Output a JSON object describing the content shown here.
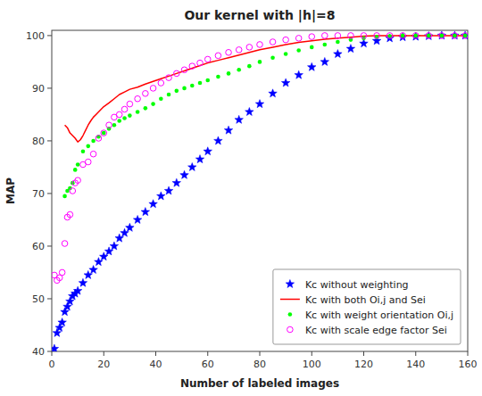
{
  "chart_data": {
    "type": "line",
    "title": "Our kernel with |h|=8",
    "xlabel": "Number of labeled images",
    "ylabel": "MAP",
    "xlim": [
      0,
      160
    ],
    "ylim": [
      40,
      101
    ],
    "xticks": [
      0,
      20,
      40,
      60,
      80,
      100,
      120,
      140,
      160
    ],
    "yticks": [
      40,
      50,
      60,
      70,
      80,
      90,
      100
    ],
    "grid": false,
    "legend": "lower right",
    "series": [
      {
        "name": "Kc without weighting",
        "type": "scatter",
        "color": "blue",
        "marker": "star",
        "line_style": "none",
        "x": [
          1,
          2,
          3,
          4,
          5,
          6,
          7,
          8,
          9,
          10,
          12,
          14,
          16,
          18,
          20,
          22,
          24,
          26,
          28,
          30,
          33,
          36,
          39,
          42,
          45,
          48,
          51,
          54,
          57,
          60,
          64,
          68,
          72,
          76,
          80,
          85,
          90,
          95,
          100,
          105,
          110,
          115,
          120,
          125,
          130,
          135,
          140,
          145,
          150,
          155,
          159
        ],
        "values": [
          40.5,
          43.5,
          44.5,
          45.5,
          47.5,
          48.5,
          49.5,
          50.5,
          51.0,
          51.5,
          53.0,
          54.5,
          55.5,
          57.0,
          58.0,
          59.0,
          60.0,
          61.5,
          62.5,
          63.5,
          65.0,
          66.5,
          68.0,
          69.5,
          70.5,
          72.0,
          73.5,
          75.0,
          76.5,
          78.0,
          80.0,
          82.0,
          84.0,
          85.5,
          87.0,
          89.0,
          91.0,
          92.5,
          94.0,
          95.0,
          96.5,
          97.5,
          98.5,
          99.0,
          99.5,
          99.7,
          99.8,
          99.9,
          100.0,
          100.0,
          100.0
        ]
      },
      {
        "name": "Kc with both Oi,j and Sei",
        "type": "line",
        "color": "red",
        "marker": "none",
        "line_style": "solid",
        "x": [
          5,
          6,
          7,
          8,
          9,
          10,
          11,
          12,
          13,
          14,
          15,
          16,
          17,
          18,
          19,
          20,
          22,
          24,
          26,
          28,
          30,
          33,
          36,
          39,
          42,
          45,
          48,
          51,
          54,
          57,
          60,
          64,
          68,
          72,
          76,
          80,
          85,
          90,
          95,
          100,
          105,
          110,
          115,
          120,
          125,
          130,
          135,
          140,
          145,
          150,
          155,
          159
        ],
        "values": [
          83.0,
          82.5,
          81.5,
          81.0,
          80.5,
          79.8,
          80.2,
          81.0,
          82.0,
          83.0,
          83.8,
          84.5,
          85.0,
          85.5,
          86.0,
          86.5,
          87.2,
          88.0,
          88.8,
          89.3,
          89.8,
          90.2,
          90.8,
          91.3,
          91.8,
          92.3,
          92.8,
          93.3,
          93.8,
          94.3,
          94.8,
          95.3,
          95.8,
          96.3,
          96.8,
          97.3,
          97.8,
          98.3,
          98.7,
          99.0,
          99.3,
          99.5,
          99.7,
          99.9,
          100.0,
          100.0,
          100.0,
          100.0,
          100.0,
          100.0,
          100.0,
          100.0
        ]
      },
      {
        "name": "Kc with weight orientation Oi,j",
        "type": "scatter",
        "color": "#00ff00",
        "marker": "dot",
        "line_style": "none",
        "x": [
          5,
          6,
          7,
          8,
          9,
          10,
          12,
          14,
          16,
          18,
          20,
          22,
          24,
          26,
          28,
          30,
          33,
          36,
          39,
          42,
          45,
          48,
          51,
          54,
          57,
          60,
          64,
          68,
          72,
          76,
          80,
          85,
          90,
          95,
          100,
          105,
          110,
          115,
          120,
          125,
          130,
          135,
          140,
          145,
          150,
          155,
          159
        ],
        "values": [
          69.5,
          70.5,
          71.0,
          72.0,
          74.5,
          75.5,
          78.0,
          79.0,
          80.0,
          80.8,
          81.5,
          82.3,
          83.0,
          83.8,
          84.3,
          84.8,
          85.5,
          86.2,
          87.0,
          88.0,
          88.8,
          89.5,
          90.0,
          90.5,
          91.0,
          91.5,
          92.2,
          92.8,
          93.5,
          94.2,
          95.0,
          95.8,
          96.5,
          97.2,
          97.8,
          98.3,
          98.8,
          99.2,
          99.5,
          99.7,
          99.9,
          100.0,
          100.0,
          100.0,
          100.0,
          100.0,
          100.0
        ]
      },
      {
        "name": "Kc with scale edge factor Sei",
        "type": "scatter",
        "color": "magenta",
        "marker": "circle",
        "line_style": "none",
        "x": [
          1,
          2,
          3,
          4,
          5,
          6,
          7,
          8,
          9,
          10,
          12,
          14,
          16,
          18,
          20,
          22,
          24,
          26,
          28,
          30,
          33,
          36,
          39,
          42,
          45,
          48,
          51,
          54,
          57,
          60,
          64,
          68,
          72,
          76,
          80,
          85,
          90,
          95,
          100,
          105,
          110,
          115,
          120,
          125,
          130,
          135,
          140,
          145,
          150,
          155,
          159
        ],
        "values": [
          54.5,
          53.5,
          54.0,
          55.0,
          60.5,
          65.5,
          66.0,
          70.5,
          72.0,
          72.5,
          75.5,
          76.0,
          77.5,
          80.5,
          81.5,
          83.0,
          84.5,
          85.0,
          86.0,
          87.0,
          88.0,
          89.0,
          90.0,
          91.0,
          92.0,
          92.8,
          93.5,
          94.2,
          94.8,
          95.5,
          96.2,
          96.8,
          97.3,
          97.8,
          98.3,
          98.8,
          99.2,
          99.5,
          99.8,
          100.0,
          100.0,
          100.0,
          100.0,
          100.0,
          100.0,
          100.0,
          100.0,
          100.0,
          100.0,
          100.0,
          100.0
        ]
      }
    ]
  }
}
